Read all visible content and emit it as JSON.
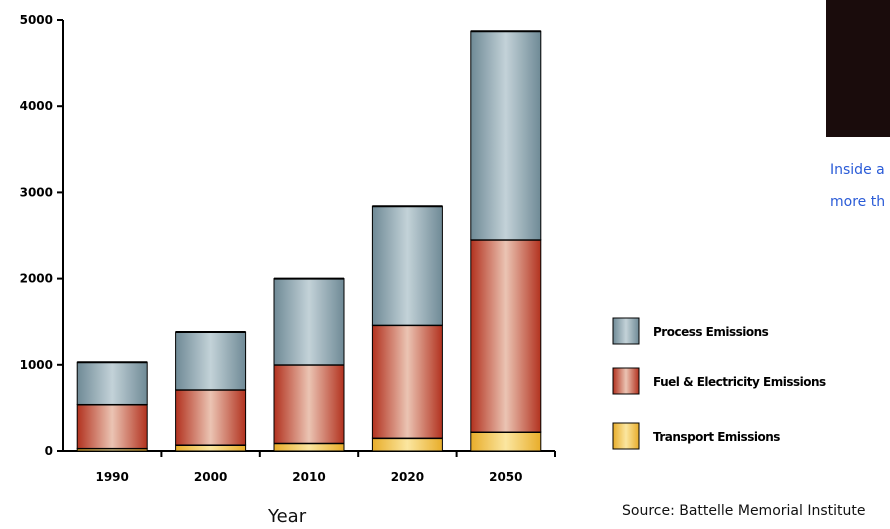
{
  "chart_data": {
    "type": "bar",
    "stacked": true,
    "categories": [
      "1990",
      "2000",
      "2010",
      "2020",
      "2050"
    ],
    "series": [
      {
        "name": "Transport Emissions",
        "values": [
          30,
          70,
          90,
          150,
          220
        ],
        "color": "#f2c24a"
      },
      {
        "name": "Fuel & Electricity Emissions",
        "values": [
          510,
          640,
          910,
          1310,
          2230
        ],
        "color": "#c8402e"
      },
      {
        "name": "Process Emissions",
        "values": [
          490,
          670,
          1000,
          1380,
          2420
        ],
        "color": "#8ea6b0"
      }
    ],
    "xlabel": "Year",
    "ylabel": "",
    "ylim": [
      0,
      5000
    ],
    "yticks": [
      0,
      1000,
      2000,
      3000,
      4000,
      5000
    ],
    "legend_position": "right",
    "legend_order": [
      "Process Emissions",
      "Fuel & Electricity Emissions",
      "Transport Emissions"
    ],
    "grid": false
  },
  "source": "Source: Battelle Memorial Institute",
  "caption_lines": [
    "Inside a",
    "more th"
  ]
}
